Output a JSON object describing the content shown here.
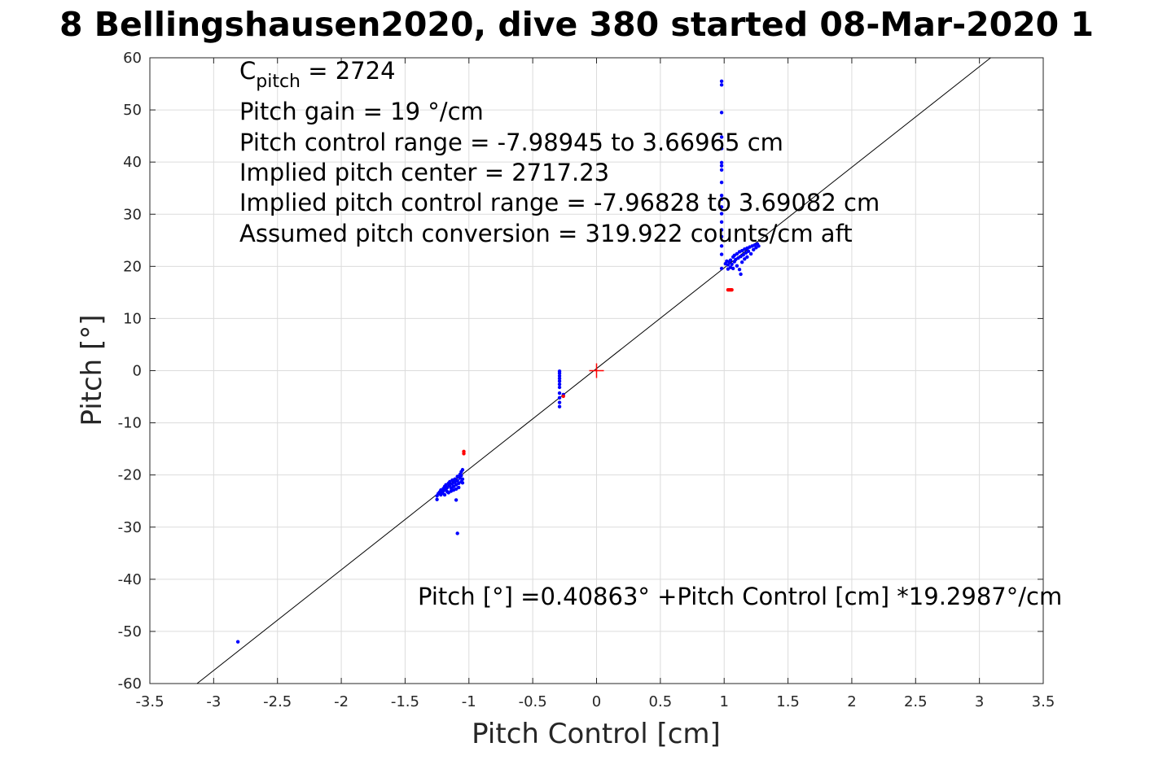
{
  "title": "8 Bellingshausen2020, dive 380 started 08-Mar-2020 1",
  "chart_data": {
    "type": "scatter",
    "title": "8 Bellingshausen2020, dive 380 started 08-Mar-2020 1",
    "xlabel": "Pitch Control [cm]",
    "ylabel": "Pitch [°]",
    "xlim": [
      -3.5,
      3.5
    ],
    "ylim": [
      -60,
      60
    ],
    "xticks": [
      -3.5,
      -3,
      -2.5,
      -2,
      -1.5,
      -1,
      -0.5,
      0,
      0.5,
      1,
      1.5,
      2,
      2.5,
      3,
      3.5
    ],
    "xtick_labels": [
      "-3.5",
      "-3",
      "-2.5",
      "-2",
      "-1.5",
      "-1",
      "-0.5",
      "0",
      "0.5",
      "1",
      "1.5",
      "2",
      "2.5",
      "3",
      "3.5"
    ],
    "yticks": [
      -60,
      -50,
      -40,
      -30,
      -20,
      -10,
      0,
      10,
      20,
      30,
      40,
      50,
      60
    ],
    "ytick_labels": [
      "-60",
      "-50",
      "-40",
      "-30",
      "-20",
      "-10",
      "0",
      "10",
      "20",
      "30",
      "40",
      "50",
      "60"
    ],
    "grid": true,
    "fit_line": {
      "intercept": 0.40863,
      "slope": 19.2987,
      "color": "#000000"
    },
    "center_marker": {
      "x": 0,
      "y": 0,
      "color": "#ff0000",
      "marker": "+"
    },
    "series": [
      {
        "color": "#0000ff",
        "points": [
          [
            -2.81,
            -52
          ],
          [
            -1.09,
            -31.2
          ],
          [
            -1.25,
            -24.7
          ],
          [
            -1.25,
            -24
          ],
          [
            -1.24,
            -23.6
          ],
          [
            -1.23,
            -23.3
          ],
          [
            -1.22,
            -23.8
          ],
          [
            -1.22,
            -22.9
          ],
          [
            -1.21,
            -23.5
          ],
          [
            -1.2,
            -22.6
          ],
          [
            -1.2,
            -23.1
          ],
          [
            -1.19,
            -22.2
          ],
          [
            -1.19,
            -23.8
          ],
          [
            -1.18,
            -22.8
          ],
          [
            -1.18,
            -21.9
          ],
          [
            -1.17,
            -23.2
          ],
          [
            -1.17,
            -22.4
          ],
          [
            -1.16,
            -21.6
          ],
          [
            -1.16,
            -23.4
          ],
          [
            -1.15,
            -22.1
          ],
          [
            -1.15,
            -21.3
          ],
          [
            -1.14,
            -23.1
          ],
          [
            -1.14,
            -22.5
          ],
          [
            -1.13,
            -21.7
          ],
          [
            -1.13,
            -21.0
          ],
          [
            -1.12,
            -22.9
          ],
          [
            -1.12,
            -22.2
          ],
          [
            -1.11,
            -21.4
          ],
          [
            -1.11,
            -20.8
          ],
          [
            -1.1,
            -22.7
          ],
          [
            -1.1,
            -21.9
          ],
          [
            -1.1,
            -24.8
          ],
          [
            -1.09,
            -21.1
          ],
          [
            -1.09,
            -20.3
          ],
          [
            -1.08,
            -21.6
          ],
          [
            -1.08,
            -22.4
          ],
          [
            -1.07,
            -20.6
          ],
          [
            -1.07,
            -19.9
          ],
          [
            -1.06,
            -21.3
          ],
          [
            -1.06,
            -20.1
          ],
          [
            -1.06,
            -19.4
          ],
          [
            -1.05,
            -20.8
          ],
          [
            -1.05,
            -21.5
          ],
          [
            -1.05,
            -19.0
          ],
          [
            -0.29,
            -0.1
          ],
          [
            -0.29,
            -0.5
          ],
          [
            -0.29,
            -1.0
          ],
          [
            -0.29,
            -1.5
          ],
          [
            -0.29,
            -2.0
          ],
          [
            -0.29,
            -2.6
          ],
          [
            -0.29,
            -3.2
          ],
          [
            -0.29,
            -4.3
          ],
          [
            -0.29,
            -5.2
          ],
          [
            -0.29,
            -6.1
          ],
          [
            -0.29,
            -6.9
          ],
          [
            -0.26,
            -4.6
          ],
          [
            0.98,
            55.5
          ],
          [
            0.98,
            54.8
          ],
          [
            0.98,
            49.5
          ],
          [
            0.98,
            44.8
          ],
          [
            0.98,
            42.6
          ],
          [
            0.98,
            39.3
          ],
          [
            0.98,
            39.9
          ],
          [
            0.98,
            38.5
          ],
          [
            0.98,
            36.1
          ],
          [
            0.98,
            33.6
          ],
          [
            0.98,
            32.9
          ],
          [
            0.98,
            31.4
          ],
          [
            0.98,
            30.1
          ],
          [
            0.98,
            28.5
          ],
          [
            0.98,
            27.0
          ],
          [
            0.98,
            25.7
          ],
          [
            0.98,
            23.9
          ],
          [
            0.98,
            22.3
          ],
          [
            0.98,
            19.6
          ],
          [
            1.01,
            20.5
          ],
          [
            1.02,
            21.0
          ],
          [
            1.03,
            19.5
          ],
          [
            1.03,
            20.3
          ],
          [
            1.04,
            20.9
          ],
          [
            1.05,
            19.8
          ],
          [
            1.05,
            21.2
          ],
          [
            1.06,
            20.4
          ],
          [
            1.07,
            21.8
          ],
          [
            1.07,
            19.6
          ],
          [
            1.08,
            20.9
          ],
          [
            1.08,
            22.1
          ],
          [
            1.09,
            21.3
          ],
          [
            1.1,
            20.1
          ],
          [
            1.1,
            22.4
          ],
          [
            1.11,
            21.6
          ],
          [
            1.12,
            19.4
          ],
          [
            1.12,
            22.8
          ],
          [
            1.13,
            21.9
          ],
          [
            1.13,
            18.5
          ],
          [
            1.14,
            20.8
          ],
          [
            1.14,
            23.0
          ],
          [
            1.15,
            22.2
          ],
          [
            1.16,
            21.4
          ],
          [
            1.16,
            23.3
          ],
          [
            1.17,
            22.6
          ],
          [
            1.18,
            21.8
          ],
          [
            1.18,
            23.5
          ],
          [
            1.19,
            22.9
          ],
          [
            1.2,
            23.7
          ],
          [
            1.21,
            22.4
          ],
          [
            1.22,
            23.9
          ],
          [
            1.23,
            23.2
          ],
          [
            1.24,
            24.1
          ],
          [
            1.25,
            23.6
          ],
          [
            1.26,
            24.3
          ],
          [
            1.27,
            23.9
          ]
        ]
      },
      {
        "color": "#ff0000",
        "points": [
          [
            -1.04,
            -15.5
          ],
          [
            -1.04,
            -15.9
          ],
          [
            -0.26,
            -4.9
          ],
          [
            1.03,
            15.5
          ],
          [
            1.04,
            15.5
          ],
          [
            1.05,
            15.5
          ],
          [
            1.06,
            15.5
          ]
        ]
      }
    ]
  },
  "annotations": {
    "c_pitch_main": "C",
    "c_pitch_sub": "pitch",
    "c_pitch_value": " = 2724",
    "pitch_gain": "Pitch gain = 19 °/cm",
    "control_range": "Pitch control range = -7.98945 to 3.66965 cm",
    "implied_center": "Implied pitch center = 2717.23",
    "implied_range": "Implied pitch control range = -7.96828 to 3.69082 cm",
    "conversion": "Assumed pitch conversion = 319.922 counts/cm aft",
    "fit_equation": "Pitch [°] =0.40863° +Pitch Control [cm] *19.2987°/cm"
  }
}
